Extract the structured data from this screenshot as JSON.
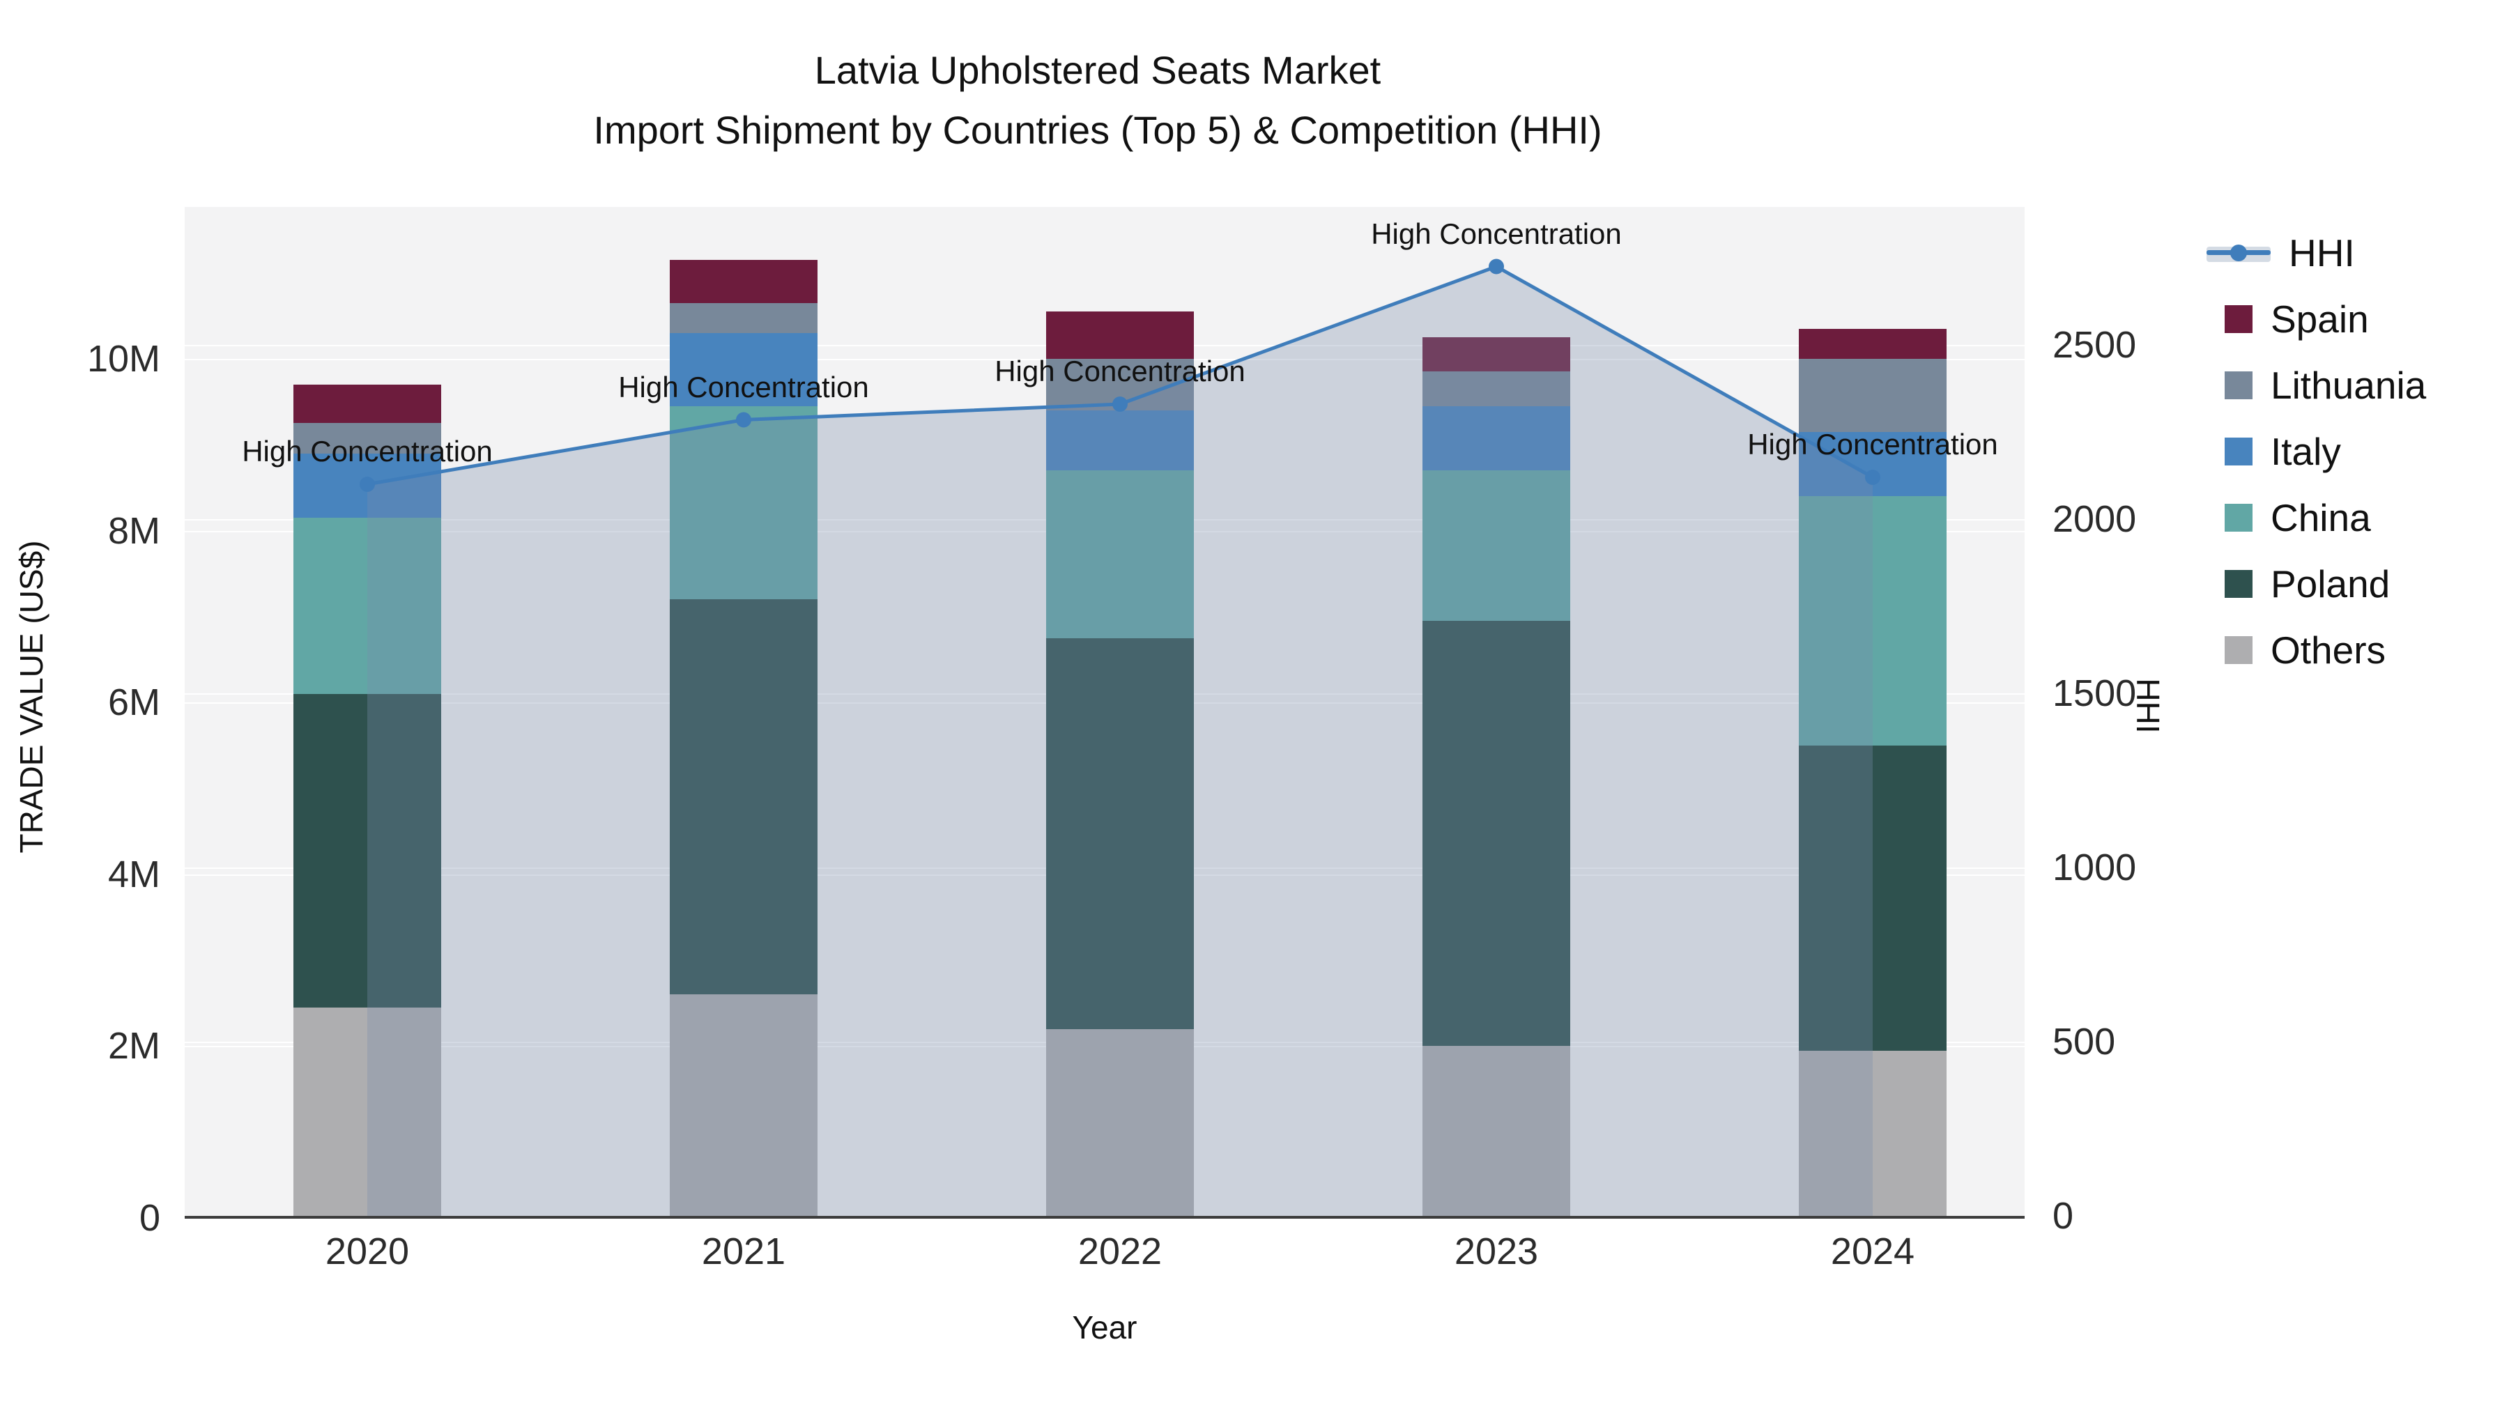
{
  "title": {
    "line1": "Latvia Upholstered Seats Market",
    "line2": "Import Shipment by Countries (Top 5) & Competition (HHI)"
  },
  "axes": {
    "left": {
      "title": "TRADE VALUE (US$)",
      "ticks": [
        "0",
        "2M",
        "4M",
        "6M",
        "8M",
        "10M"
      ],
      "tick_values_musd": [
        0,
        2,
        4,
        6,
        8,
        10
      ]
    },
    "right": {
      "title": "HHI",
      "ticks": [
        "0",
        "500",
        "1000",
        "1500",
        "2000",
        "2500"
      ],
      "tick_values": [
        0,
        500,
        1000,
        1500,
        2000,
        2500
      ]
    },
    "x": {
      "title": "Year",
      "ticks": [
        "2020",
        "2021",
        "2022",
        "2023",
        "2024"
      ]
    }
  },
  "annotation_text": "High Concentration",
  "legend_items": [
    {
      "label": "HHI",
      "type": "line",
      "color": "#3f7dbb"
    },
    {
      "label": "Spain",
      "type": "square",
      "color": "#6d1c3d"
    },
    {
      "label": "Lithuania",
      "type": "square",
      "color": "#78889a"
    },
    {
      "label": "Italy",
      "type": "square",
      "color": "#4884be"
    },
    {
      "label": "China",
      "type": "square",
      "color": "#61a7a5"
    },
    {
      "label": "Poland",
      "type": "square",
      "color": "#2e514e"
    },
    {
      "label": "Others",
      "type": "square",
      "color": "#aeaeb0"
    }
  ],
  "colors": {
    "hhi_line": "#3f7dbb",
    "hhi_fill": "rgba(120,140,170,0.32)",
    "plot_bg": "#f3f3f4",
    "gridline": "#ffffff",
    "axis_line": "#3c3c3c"
  },
  "chart_data": {
    "type": "bar",
    "subtype": "stacked-bars-with-line",
    "categories": [
      "2020",
      "2021",
      "2022",
      "2023",
      "2024"
    ],
    "stack_order_bottom_to_top": [
      "Others",
      "Poland",
      "China",
      "Italy",
      "Lithuania",
      "Spain"
    ],
    "series": [
      {
        "name": "Others",
        "values_musd": [
          2.45,
          2.6,
          2.2,
          2.0,
          1.95
        ]
      },
      {
        "name": "Poland",
        "values_musd": [
          3.65,
          4.6,
          4.55,
          4.95,
          3.55
        ]
      },
      {
        "name": "China",
        "values_musd": [
          2.05,
          2.25,
          1.95,
          1.75,
          2.9
        ]
      },
      {
        "name": "Italy",
        "values_musd": [
          0.75,
          0.85,
          0.7,
          0.75,
          0.75
        ]
      },
      {
        "name": "Lithuania",
        "values_musd": [
          0.35,
          0.35,
          0.6,
          0.4,
          0.85
        ]
      },
      {
        "name": "Spain",
        "values_musd": [
          0.45,
          0.5,
          0.55,
          0.4,
          0.35
        ]
      }
    ],
    "bar_totals_musd": [
      9.7,
      11.15,
      10.55,
      10.25,
      10.35
    ],
    "line_series": {
      "name": "HHI",
      "values": [
        2100,
        2285,
        2330,
        2725,
        2120
      ],
      "annotations": [
        "High Concentration",
        "High Concentration",
        "High Concentration",
        "High Concentration",
        "High Concentration"
      ]
    },
    "title": "Latvia Upholstered Seats Market — Import Shipment by Countries (Top 5) & Competition (HHI)",
    "xlabel": "Year",
    "ylabel_left": "TRADE VALUE (US$)",
    "ylabel_right": "HHI",
    "ylim_left_musd": [
      0,
      11.8
    ],
    "ylim_right": [
      0,
      2970
    ],
    "grid": true,
    "legend_position": "right"
  }
}
